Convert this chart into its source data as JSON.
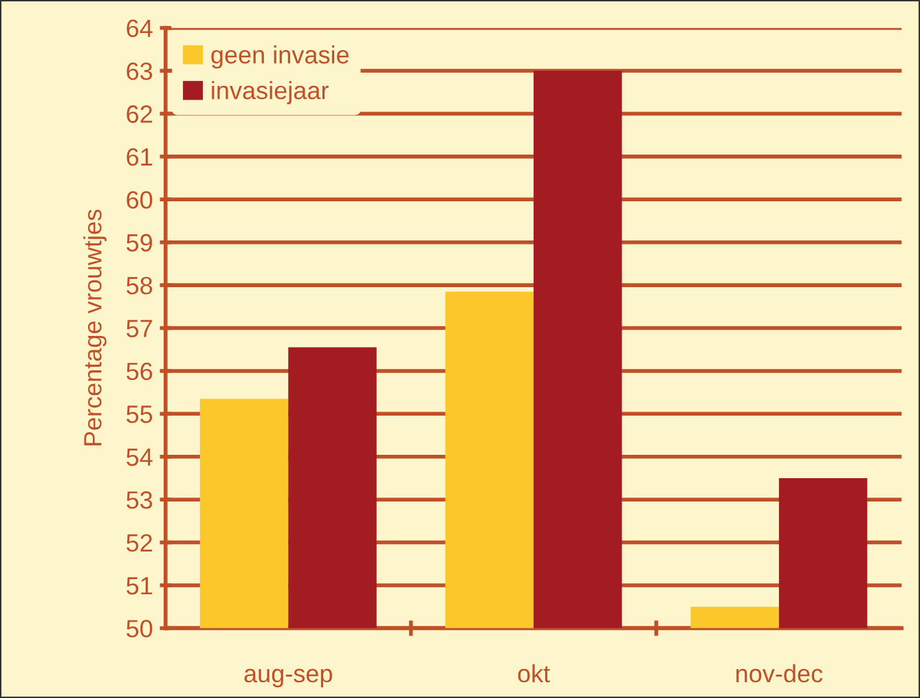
{
  "chart_data": {
    "type": "bar",
    "ylabel": "Percentage vrouwtjes",
    "categories": [
      "aug-sep",
      "okt",
      "nov-dec"
    ],
    "series": [
      {
        "name": "geen invasie",
        "color": "#fcc72a",
        "values": [
          55.35,
          57.85,
          50.5
        ]
      },
      {
        "name": "invasiejaar",
        "color": "#a31c22",
        "values": [
          56.55,
          63.0,
          53.5
        ]
      }
    ],
    "ylim": [
      50,
      64
    ],
    "yticks": [
      50,
      51,
      52,
      53,
      54,
      55,
      56,
      57,
      58,
      59,
      60,
      61,
      62,
      63,
      64
    ],
    "grid": "y",
    "legend": "top left"
  }
}
